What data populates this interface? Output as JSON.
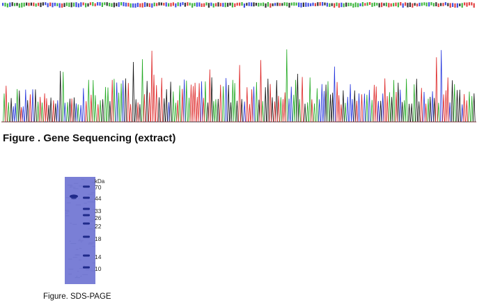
{
  "sequencing": {
    "title": "Figure . Gene Sequencing (extract)",
    "colors": {
      "A": "#22aa22",
      "C": "#2233dd",
      "G": "#111111",
      "T": "#dd2222"
    }
  },
  "gel": {
    "unit_label": "kDa",
    "markers": [
      {
        "label": "70",
        "kda": 70
      },
      {
        "label": "44",
        "kda": 44
      },
      {
        "label": "33",
        "kda": 33
      },
      {
        "label": "26",
        "kda": 26
      },
      {
        "label": "22",
        "kda": 22
      },
      {
        "label": "18",
        "kda": 18
      },
      {
        "label": "14",
        "kda": 14
      },
      {
        "label": "10",
        "kda": 10
      }
    ],
    "caption": "Figure. SDS-PAGE",
    "colors": {
      "gel_bg": "#7a7fd6",
      "band": "#1f2a8a"
    }
  }
}
